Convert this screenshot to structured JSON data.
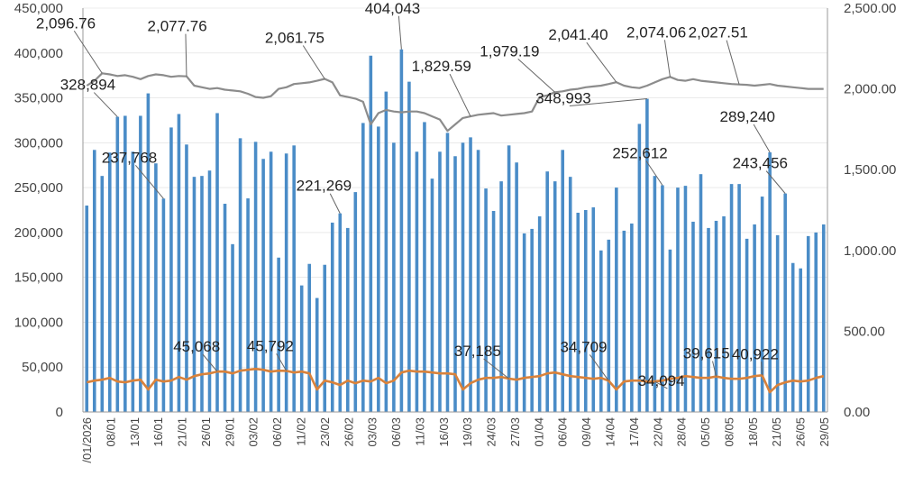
{
  "chart_data": {
    "type": "bar",
    "title": "",
    "colors": {
      "bars": "#4a8cc7",
      "line_secondary": "#8c8c8c",
      "line_primary": "#d9823b",
      "axis": "#999999",
      "grid": "#dddddd"
    },
    "axes": {
      "y_left": {
        "min": 0,
        "max": 450000,
        "ticks": [
          "0",
          "50,000",
          "100,000",
          "150,000",
          "200,000",
          "250,000",
          "300,000",
          "350,000",
          "400,000",
          "450,000"
        ]
      },
      "y_right": {
        "min": 0,
        "max": 2500,
        "ticks": [
          "0.00",
          "500.00",
          "1,000.00",
          "1,500.00",
          "2,000.00",
          "2,500.00"
        ]
      }
    },
    "x_tick_labels": [
      "/01/2026",
      "08/01",
      "13/01",
      "16/01",
      "21/01",
      "26/01",
      "29/01",
      "03/02",
      "06/02",
      "11/02",
      "23/02",
      "26/02",
      "03/03",
      "06/03",
      "11/03",
      "16/03",
      "19/03",
      "24/03",
      "27/03",
      "01/04",
      "06/04",
      "09/04",
      "14/04",
      "17/04",
      "22/04",
      "28/04",
      "05/05",
      "08/05",
      "18/05",
      "21/05",
      "26/05",
      "29/05"
    ],
    "series": [
      {
        "kind": "bar",
        "axis": "left",
        "values": [
          230000,
          292000,
          263000,
          289000,
          328894,
          330000,
          290000,
          330000,
          355000,
          277000,
          237768,
          317000,
          332000,
          298000,
          262000,
          263000,
          269000,
          333000,
          232000,
          187000,
          305000,
          238000,
          301000,
          282000,
          290000,
          172000,
          288000,
          297000,
          141000,
          165000,
          127000,
          164000,
          211000,
          221269,
          205000,
          245000,
          322000,
          397000,
          318000,
          357000,
          300000,
          404043,
          368000,
          290000,
          323000,
          260000,
          290000,
          311000,
          285000,
          300000,
          306000,
          292000,
          249000,
          224000,
          257000,
          297000,
          278000,
          199000,
          204000,
          218000,
          268000,
          257000,
          292000,
          262000,
          222000,
          225000,
          228000,
          180000,
          192000,
          250000,
          202000,
          210000,
          321000,
          348993,
          263000,
          252612,
          181000,
          250000,
          252000,
          212000,
          265000,
          205000,
          213000,
          218000,
          254000,
          254000,
          193000,
          209000,
          240000,
          289240,
          197000,
          243456,
          166000,
          160000,
          196000,
          200000,
          209000
        ]
      },
      {
        "kind": "line",
        "axis": "left",
        "values": [
          33000,
          35000,
          36000,
          38000,
          34000,
          33000,
          35000,
          36000,
          25000,
          36000,
          34000,
          35000,
          39000,
          36000,
          40000,
          42000,
          43000,
          45068,
          45000,
          43000,
          46000,
          47000,
          48000,
          47000,
          45000,
          46000,
          45792,
          44000,
          45000,
          43000,
          25000,
          35000,
          33000,
          30000,
          35000,
          32000,
          35000,
          34000,
          38000,
          32000,
          35000,
          44000,
          46000,
          45000,
          45000,
          44000,
          43000,
          43000,
          42000,
          25000,
          32000,
          36000,
          38000,
          38000,
          39000,
          37185,
          36000,
          38000,
          39000,
          40000,
          43000,
          44000,
          42000,
          40000,
          39000,
          38000,
          37000,
          38000,
          34709,
          25000,
          34000,
          35000,
          35000,
          34000,
          34094,
          35000,
          37000,
          38000,
          40000,
          39000,
          38000,
          38000,
          39615,
          38000,
          37000,
          37000,
          38000,
          40000,
          40922,
          22000,
          30000,
          33000,
          35000,
          34000,
          35000,
          38000,
          40000
        ]
      },
      {
        "kind": "line",
        "axis": "right",
        "values": [
          2020,
          2050,
          2096.76,
          2090,
          2080,
          2085,
          2075,
          2060,
          2080,
          2090,
          2085,
          2075,
          2080,
          2077.76,
          2020,
          2010,
          2000,
          2005,
          1995,
          1990,
          1985,
          1970,
          1950,
          1945,
          1955,
          2000,
          2010,
          2030,
          2035,
          2040,
          2050,
          2061.75,
          2040,
          1960,
          1950,
          1940,
          1920,
          1780,
          1850,
          1870,
          1860,
          1855,
          1860,
          1860,
          1850,
          1830,
          1810,
          1740,
          1780,
          1820,
          1829.59,
          1840,
          1845,
          1850,
          1835,
          1840,
          1845,
          1850,
          1860,
          1950,
          1960,
          1979.19,
          1985,
          1995,
          2000,
          2010,
          2015,
          2020,
          2030,
          2041.4,
          2020,
          2010,
          2005,
          2020,
          2040,
          2060,
          2074.06,
          2055,
          2050,
          2060,
          2050,
          2045,
          2040,
          2035,
          2030,
          2027.51,
          2025,
          2020,
          2025,
          2030,
          2020,
          2015,
          2010,
          2005,
          2000,
          2000,
          2000
        ]
      }
    ],
    "annotations": [
      {
        "text": "2,096.76",
        "series": 2,
        "index": 2
      },
      {
        "text": "2,077.76",
        "series": 2,
        "index": 13
      },
      {
        "text": "2,061.75",
        "series": 2,
        "index": 31
      },
      {
        "text": "404,043",
        "series": 0,
        "index": 41
      },
      {
        "text": "1,829.59",
        "series": 2,
        "index": 50
      },
      {
        "text": "1,979.19",
        "series": 2,
        "index": 61
      },
      {
        "text": "2,041.40",
        "series": 2,
        "index": 69
      },
      {
        "text": "2,074.06",
        "series": 2,
        "index": 76
      },
      {
        "text": "2,027.51",
        "series": 2,
        "index": 85
      },
      {
        "text": "328,894",
        "series": 0,
        "index": 4
      },
      {
        "text": "237,768",
        "series": 0,
        "index": 10
      },
      {
        "text": "221,269",
        "series": 0,
        "index": 33
      },
      {
        "text": "348,993",
        "series": 0,
        "index": 73
      },
      {
        "text": "252,612",
        "series": 0,
        "index": 75
      },
      {
        "text": "289,240",
        "series": 0,
        "index": 89
      },
      {
        "text": "243,456",
        "series": 0,
        "index": 91
      },
      {
        "text": "45,068",
        "series": 1,
        "index": 17
      },
      {
        "text": "45,792",
        "series": 1,
        "index": 26
      },
      {
        "text": "37,185",
        "series": 1,
        "index": 55
      },
      {
        "text": "34,709",
        "series": 1,
        "index": 68
      },
      {
        "text": "34,094",
        "series": 1,
        "index": 74
      },
      {
        "text": "39,615",
        "series": 1,
        "index": 82
      },
      {
        "text": "40,922",
        "series": 1,
        "index": 88
      }
    ]
  }
}
